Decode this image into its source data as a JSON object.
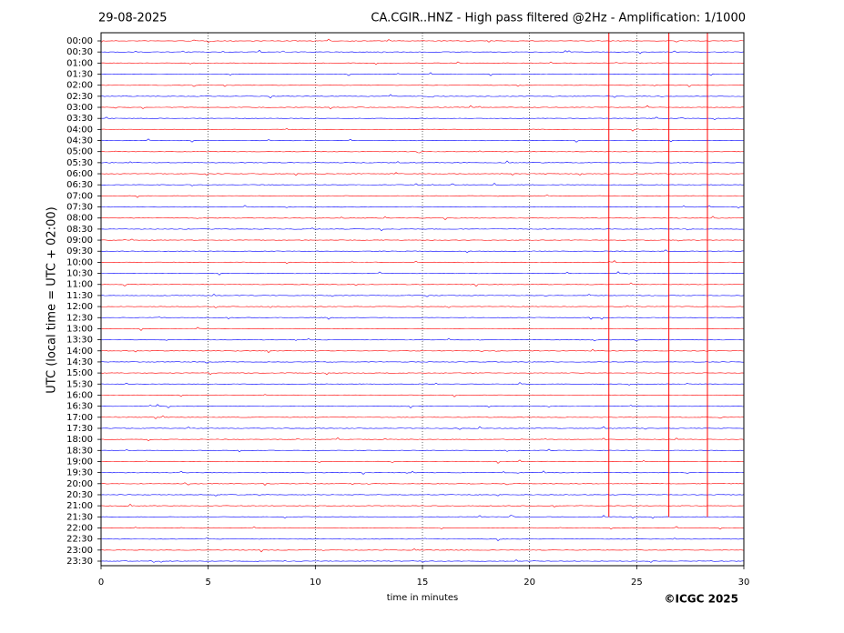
{
  "chart_data": {
    "type": "helicorder",
    "date": "29-08-2025",
    "title": "CA.CGIR..HNZ - High pass filtered @2Hz - Amplification: 1/1000",
    "x_label": "time in minutes",
    "y_label": "UTC (local time = UTC + 02:00)",
    "copyright": "©ICGC 2025",
    "xlim": [
      0,
      30
    ],
    "xticks": [
      0,
      5,
      10,
      15,
      20,
      25,
      30
    ],
    "grid": true,
    "colors": [
      "#ff0000",
      "#0000ff"
    ],
    "rows": [
      "00:00",
      "00:30",
      "01:00",
      "01:30",
      "02:00",
      "02:30",
      "03:00",
      "03:30",
      "04:00",
      "04:30",
      "05:00",
      "05:30",
      "06:00",
      "06:30",
      "07:00",
      "07:30",
      "08:00",
      "08:30",
      "09:00",
      "09:30",
      "10:00",
      "10:30",
      "11:00",
      "11:30",
      "12:00",
      "12:30",
      "13:00",
      "13:30",
      "14:00",
      "14:30",
      "15:00",
      "15:30",
      "16:00",
      "16:30",
      "17:00",
      "17:30",
      "18:00",
      "18:30",
      "19:00",
      "19:30",
      "20:00",
      "20:30",
      "21:00",
      "21:30",
      "22:00",
      "22:30",
      "23:00",
      "23:30"
    ],
    "events": [
      {
        "x": 23.7
      },
      {
        "x": 26.5
      },
      {
        "x": 28.3
      }
    ]
  }
}
